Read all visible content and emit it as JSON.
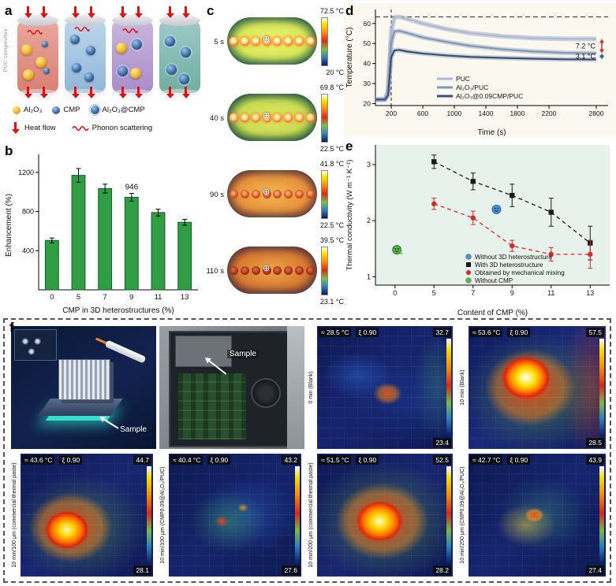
{
  "figure": {
    "letters": {
      "a": "a",
      "b": "b",
      "c": "c",
      "d": "d",
      "e": "e",
      "f": "f"
    },
    "panels": {
      "a": {
        "side_label": "PUC composites",
        "legend_row1": [
          {
            "icon": "alumina-sphere-icon",
            "label": "Al₂O₃"
          },
          {
            "icon": "cmp-sphere-icon",
            "label": "CMP"
          },
          {
            "icon": "alumina-cmp-cluster-icon",
            "label": "Al₂O₃@CMP"
          }
        ],
        "legend_row2": [
          {
            "icon": "heat-flow-arrow-icon",
            "label": "Heat flow"
          },
          {
            "icon": "phonon-scattering-icon",
            "label": "Phonon scattering"
          }
        ]
      },
      "c": {
        "frames": [
          {
            "time": "5 s",
            "tmax": "72.5 °C",
            "tmin": "20 °C",
            "style": "hot1"
          },
          {
            "time": "40 s",
            "tmax": "69.8 °C",
            "tmin": "22.5 °C",
            "style": "hot2"
          },
          {
            "time": "90 s",
            "tmax": "41.8 °C",
            "tmin": "22.5 °C",
            "style": "warm1"
          },
          {
            "time": "110 s",
            "tmax": "39.5 °C",
            "tmin": "23.1 °C",
            "style": "warm2"
          }
        ]
      },
      "f": {
        "row1": [
          {
            "kind": "render",
            "annotation": "Sample"
          },
          {
            "kind": "photo",
            "annotation": "Sample"
          },
          {
            "kind": "thermal",
            "style": "t-cold",
            "avg": "≈ 28.5 °C",
            "emissivity": "ξ 0.90",
            "max": "32.7",
            "min": "23.4",
            "label": "0 min (Blank)"
          },
          {
            "kind": "thermal",
            "style": "t-veryhot",
            "avg": "≈ 53.6 °C",
            "emissivity": "ξ 0.90",
            "max": "57.5",
            "min": "28.5",
            "label": "10 min (Blank)"
          }
        ],
        "row2": [
          {
            "kind": "thermal",
            "style": "t-hotA",
            "avg": "≈ 43.6 °C",
            "emissivity": "ξ 0.90",
            "max": "44.7",
            "min": "28.1",
            "label": "10 min/100 μm (commercial thermal paste)"
          },
          {
            "kind": "thermal",
            "style": "t-coolA",
            "avg": "≈ 40.4 °C",
            "emissivity": "ξ 0.90",
            "max": "43.2",
            "min": "27.6",
            "label": "10 min/100 μm (CMP0.09@Al₂O₃/PUC)"
          },
          {
            "kind": "thermal",
            "style": "t-hotB",
            "avg": "≈ 51.5 °C",
            "emissivity": "ξ 0.90",
            "max": "52.5",
            "min": "28.2",
            "label": "10 min/200 μm (commercial thermal paste)"
          },
          {
            "kind": "thermal",
            "style": "t-coolB",
            "avg": "≈ 42.7 °C",
            "emissivity": "ξ 0.90",
            "max": "43.9",
            "min": "27.4",
            "label": "10 min/200 μm (CMP0.09@Al₂O₃/PUC)"
          }
        ]
      }
    },
    "chart_data": [
      {
        "id": "panel-b",
        "type": "bar",
        "categories": [
          "0",
          "5",
          "7",
          "9",
          "11",
          "13"
        ],
        "values": [
          505,
          1170,
          1035,
          946,
          790,
          690
        ],
        "errors": [
          25,
          70,
          45,
          40,
          35,
          30
        ],
        "annotations": [
          {
            "text": "946",
            "category_index": 3
          }
        ],
        "xlabel": "CMP in 3D heterostructures (%)",
        "ylabel": "Enhancement (%)",
        "ylim": [
          0,
          1320
        ],
        "yticks": [
          400,
          800,
          1200
        ],
        "bar_color": "#2f9e44",
        "bar_edge": "#145a26"
      },
      {
        "id": "panel-d",
        "type": "line",
        "x": [
          0,
          60,
          120,
          160,
          200,
          240,
          300,
          400,
          600,
          900,
          1200,
          1600,
          2000,
          2400,
          2800
        ],
        "series": [
          {
            "name": "PUC",
            "color": "#a8bcd9",
            "values": [
              22,
              22,
              22,
              26,
              56,
              63,
              63.3,
              62.3,
              60,
              57.2,
              55.2,
              53.6,
              52.7,
              52.3,
              52.3
            ]
          },
          {
            "name": "Al₂O₃/PUC",
            "color": "#7d97bd",
            "values": [
              22,
              22,
              22,
              25,
              50,
              56,
              56.3,
              55.3,
              53,
              50.8,
              48.8,
              47.1,
              46,
              45.3,
              45.1
            ]
          },
          {
            "name": "Al₂O₃@0.09CMP/PUC",
            "color": "#35517d",
            "values": [
              22,
              22,
              22,
              24,
              43,
              46.5,
              46.8,
              46,
              45,
              44,
              43.3,
              42.8,
              42.4,
              42.1,
              42
            ]
          }
        ],
        "annotations": [
          {
            "text": "7.2 °C",
            "between": [
              0,
              1
            ],
            "arrow_color": "#d62828"
          },
          {
            "text": "3.1 °C",
            "between": [
              1,
              2
            ],
            "arrow_color": "#2b6cb0"
          }
        ],
        "xlabel": "Time (s)",
        "ylabel": "Temperature (°C)",
        "xlim": [
          0,
          2950
        ],
        "ylim": [
          19,
          67
        ],
        "xticks": [
          200,
          600,
          1000,
          1400,
          1800,
          2200,
          2800
        ],
        "yticks": [
          20,
          30,
          40,
          50,
          60
        ],
        "dashed_top_y": 63.3,
        "dashed_x": 200,
        "legend_position": "inside-bottom",
        "grid": false
      },
      {
        "id": "panel-e",
        "type": "scatter",
        "x_categories": [
          "0",
          "5",
          "7",
          "9",
          "11",
          "13"
        ],
        "series": [
          {
            "name": "Without 3D heterostructure",
            "marker": "smiley-blue",
            "color": "#4a90d9",
            "points": [
              {
                "xi": 2.6,
                "y": 2.2
              }
            ]
          },
          {
            "name": "With 3D heterostructure",
            "marker": "square",
            "color": "#1a1a1a",
            "line": "dashed",
            "xi": [
              1,
              2,
              3,
              4,
              5
            ],
            "values": [
              3.05,
              2.7,
              2.45,
              2.15,
              1.6
            ],
            "errors": [
              0.12,
              0.15,
              0.2,
              0.25,
              0.3
            ]
          },
          {
            "name": "Obtained by mechanical mixing",
            "marker": "circle",
            "color": "#d62828",
            "line": "dashed",
            "xi": [
              1,
              2,
              3,
              4,
              5
            ],
            "values": [
              2.3,
              2.05,
              1.55,
              1.4,
              1.4
            ],
            "errors": [
              0.1,
              0.12,
              0.1,
              0.12,
              0.25
            ]
          },
          {
            "name": "Without CMP",
            "marker": "bubble-green",
            "color": "#57b947",
            "points": [
              {
                "xi": 0.05,
                "y": 1.48
              }
            ]
          }
        ],
        "xlabel": "Content of CMP (%)",
        "ylabel": "Thermal conductivity (W m⁻¹ K⁻¹)",
        "ylim": [
          0.85,
          3.35
        ],
        "yticks": [
          1,
          2,
          3
        ],
        "plot_bg": "#e8f2ec",
        "legend_position": "inside-bottom-right",
        "grid": false
      }
    ]
  }
}
